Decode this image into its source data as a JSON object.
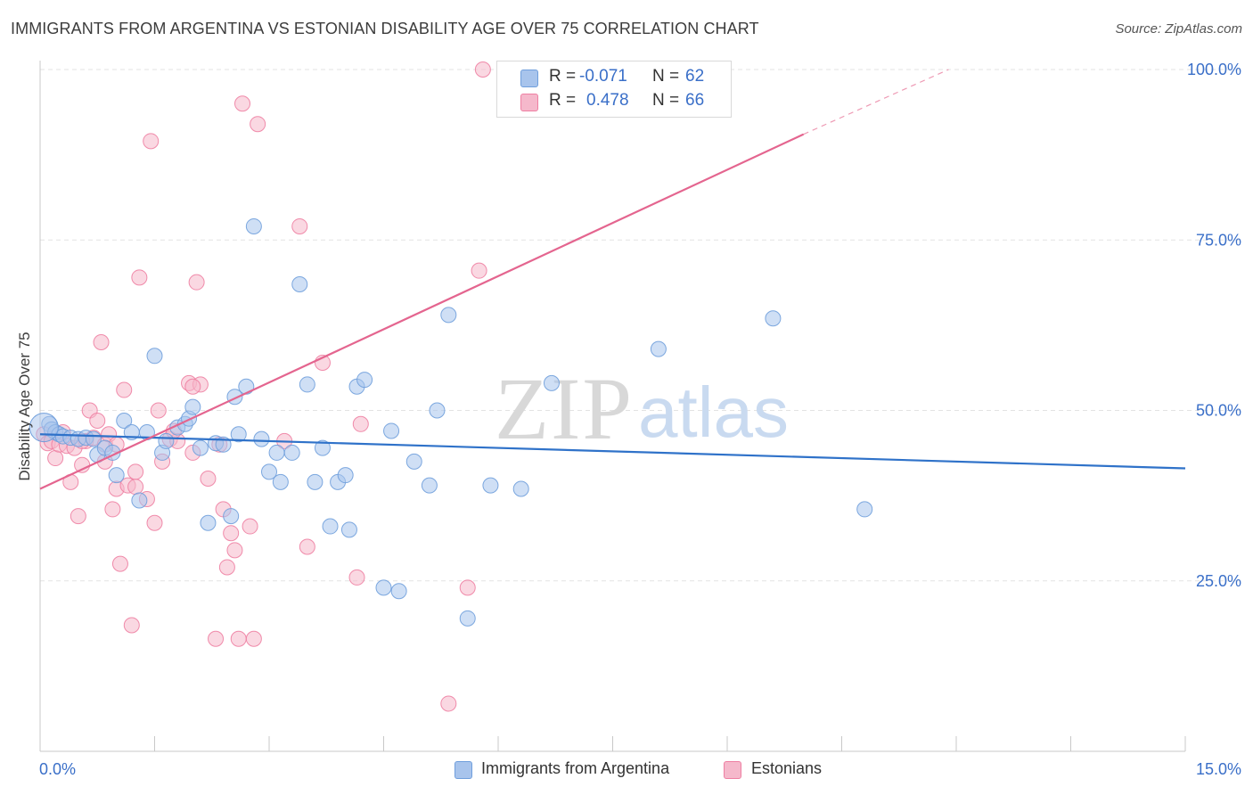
{
  "header": {
    "title": "IMMIGRANTS FROM ARGENTINA VS ESTONIAN DISABILITY AGE OVER 75 CORRELATION CHART",
    "source": "Source: ZipAtlas.com"
  },
  "watermark": {
    "zip": "ZIP",
    "atlas": "atlas"
  },
  "legend": {
    "rows": [
      {
        "r_label": "R =",
        "r_value": "-0.071",
        "n_label": "N =",
        "n_value": "62",
        "color": "#a8c4ec"
      },
      {
        "r_label": "R =",
        "r_value": "0.478",
        "n_label": "N =",
        "n_value": "66",
        "color": "#f5b8cb"
      }
    ]
  },
  "bottom_legend": {
    "items": [
      {
        "label": "Immigrants from Argentina",
        "color": "#a8c4ec"
      },
      {
        "label": "Estonians",
        "color": "#f5b8cb"
      }
    ]
  },
  "chart_data": {
    "type": "scatter",
    "title": "IMMIGRANTS FROM ARGENTINA VS ESTONIAN DISABILITY AGE OVER 75 CORRELATION CHART",
    "xlabel": "",
    "ylabel": "Disability Age Over 75",
    "xlim": [
      0,
      15
    ],
    "ylim": [
      0,
      100
    ],
    "x_tick_labels": [
      "0.0%",
      "15.0%"
    ],
    "y_tick_labels": [
      "25.0%",
      "50.0%",
      "75.0%",
      "100.0%"
    ],
    "y_ticks": [
      25,
      50,
      75,
      100
    ],
    "grid": true,
    "legend_placement": "top-center",
    "series": [
      {
        "name": "Immigrants from Argentina",
        "color": "#6f9edc",
        "fill": "#a8c4ec",
        "trend": {
          "x0": 0,
          "y0": 46.5,
          "x1": 15,
          "y1": 41.5
        },
        "points": [
          [
            0.12,
            48.0
          ],
          [
            0.15,
            47.2
          ],
          [
            0.2,
            46.8
          ],
          [
            0.25,
            46.5
          ],
          [
            0.3,
            46.2
          ],
          [
            0.4,
            46.0
          ],
          [
            0.5,
            45.8
          ],
          [
            0.6,
            46.0
          ],
          [
            0.7,
            45.8
          ],
          [
            0.75,
            43.5
          ],
          [
            0.85,
            44.5
          ],
          [
            0.95,
            43.8
          ],
          [
            1.0,
            40.5
          ],
          [
            1.1,
            48.5
          ],
          [
            1.2,
            46.8
          ],
          [
            1.3,
            36.8
          ],
          [
            1.4,
            46.8
          ],
          [
            1.5,
            58.0
          ],
          [
            1.6,
            43.8
          ],
          [
            1.65,
            45.5
          ],
          [
            1.8,
            47.5
          ],
          [
            1.9,
            48.0
          ],
          [
            1.95,
            48.8
          ],
          [
            2.0,
            50.5
          ],
          [
            2.1,
            44.5
          ],
          [
            2.2,
            33.5
          ],
          [
            2.3,
            45.2
          ],
          [
            2.4,
            45.0
          ],
          [
            2.5,
            34.5
          ],
          [
            2.55,
            52.0
          ],
          [
            2.6,
            46.5
          ],
          [
            2.7,
            53.5
          ],
          [
            2.8,
            77.0
          ],
          [
            2.9,
            45.8
          ],
          [
            3.0,
            41.0
          ],
          [
            3.1,
            43.8
          ],
          [
            3.15,
            39.5
          ],
          [
            3.3,
            43.8
          ],
          [
            3.4,
            68.5
          ],
          [
            3.5,
            53.8
          ],
          [
            3.6,
            39.5
          ],
          [
            3.7,
            44.5
          ],
          [
            3.8,
            33.0
          ],
          [
            3.9,
            39.5
          ],
          [
            4.0,
            40.5
          ],
          [
            4.05,
            32.5
          ],
          [
            4.15,
            53.5
          ],
          [
            4.25,
            54.5
          ],
          [
            4.5,
            24.0
          ],
          [
            4.6,
            47.0
          ],
          [
            4.7,
            23.5
          ],
          [
            4.9,
            42.5
          ],
          [
            5.1,
            39.0
          ],
          [
            5.2,
            50.0
          ],
          [
            5.35,
            64.0
          ],
          [
            5.6,
            19.5
          ],
          [
            5.9,
            39.0
          ],
          [
            6.3,
            38.5
          ],
          [
            6.7,
            54.0
          ],
          [
            8.1,
            59.0
          ],
          [
            9.6,
            63.5
          ],
          [
            10.8,
            35.5
          ]
        ]
      },
      {
        "name": "Estonians",
        "color": "#ee7fa2",
        "fill": "#f5b8cb",
        "trend": {
          "x0": 0,
          "y0": 38.5,
          "x1": 10.0,
          "y1": 90.5,
          "dash_to": {
            "x": 11.9,
            "y": 100
          }
        },
        "points": [
          [
            0.05,
            46.5
          ],
          [
            0.1,
            45.2
          ],
          [
            0.15,
            45.5
          ],
          [
            0.2,
            43.0
          ],
          [
            0.25,
            45.0
          ],
          [
            0.3,
            46.8
          ],
          [
            0.35,
            44.8
          ],
          [
            0.4,
            39.5
          ],
          [
            0.45,
            44.5
          ],
          [
            0.5,
            34.5
          ],
          [
            0.55,
            42.0
          ],
          [
            0.6,
            45.5
          ],
          [
            0.65,
            50.0
          ],
          [
            0.7,
            46.0
          ],
          [
            0.75,
            48.5
          ],
          [
            0.8,
            60.0
          ],
          [
            0.85,
            45.0
          ],
          [
            0.9,
            46.5
          ],
          [
            0.95,
            35.5
          ],
          [
            1.0,
            38.5
          ],
          [
            1.05,
            27.5
          ],
          [
            1.1,
            53.0
          ],
          [
            1.15,
            39.0
          ],
          [
            1.2,
            18.5
          ],
          [
            1.25,
            38.8
          ],
          [
            1.3,
            69.5
          ],
          [
            1.4,
            37.0
          ],
          [
            1.45,
            89.5
          ],
          [
            1.5,
            33.5
          ],
          [
            1.55,
            50.0
          ],
          [
            1.6,
            42.5
          ],
          [
            1.7,
            45.8
          ],
          [
            1.8,
            45.5
          ],
          [
            1.95,
            54.0
          ],
          [
            2.0,
            43.8
          ],
          [
            2.05,
            68.8
          ],
          [
            2.1,
            53.8
          ],
          [
            2.2,
            40.0
          ],
          [
            2.3,
            16.5
          ],
          [
            2.35,
            45.0
          ],
          [
            2.4,
            35.5
          ],
          [
            2.45,
            27.0
          ],
          [
            2.5,
            32.0
          ],
          [
            2.55,
            29.5
          ],
          [
            2.6,
            16.5
          ],
          [
            2.65,
            95.0
          ],
          [
            2.75,
            33.0
          ],
          [
            2.8,
            16.5
          ],
          [
            2.85,
            92.0
          ],
          [
            3.2,
            45.5
          ],
          [
            3.4,
            77.0
          ],
          [
            3.7,
            57.0
          ],
          [
            4.15,
            25.5
          ],
          [
            4.2,
            48.0
          ],
          [
            5.35,
            7.0
          ],
          [
            5.6,
            24.0
          ],
          [
            5.75,
            70.5
          ],
          [
            5.8,
            100.0
          ],
          [
            8.1,
            100.0
          ],
          [
            3.5,
            30.0
          ],
          [
            1.0,
            45.0
          ],
          [
            0.55,
            45.5
          ],
          [
            2.0,
            53.5
          ],
          [
            1.25,
            41.0
          ],
          [
            0.85,
            42.5
          ],
          [
            1.75,
            47.0
          ]
        ]
      }
    ]
  }
}
